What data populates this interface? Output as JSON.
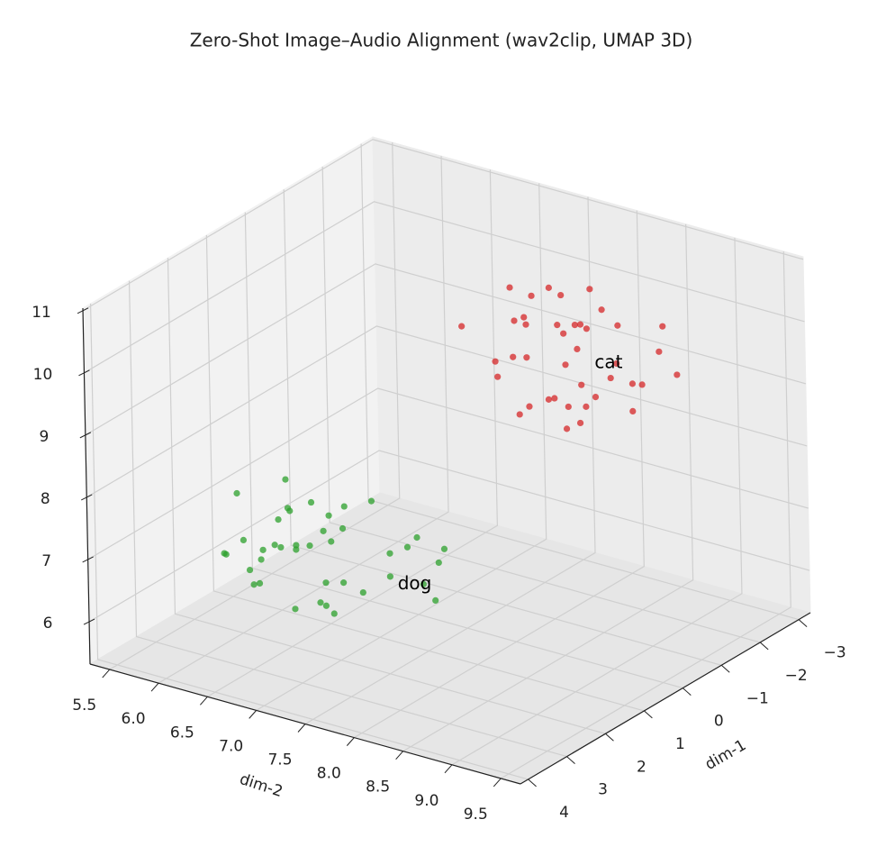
{
  "chart_data": {
    "type": "scatter3d",
    "title": "Zero-Shot Image–Audio Alignment (wav2clip, UMAP 3D)",
    "xlabel": "dim-1",
    "ylabel": "dim-2",
    "xlim": [
      -3.3,
      4.2
    ],
    "ylim": [
      5.3,
      9.7
    ],
    "zlim": [
      5.32,
      11.04
    ],
    "xticks": [
      {
        "value": -3,
        "label": "−3"
      },
      {
        "value": -2,
        "label": "−2"
      },
      {
        "value": -1,
        "label": "−1"
      },
      0,
      1,
      2,
      3,
      4
    ],
    "yticks": [
      5.5,
      {
        "value": 6,
        "label": "6.0"
      },
      6.5,
      {
        "value": 7,
        "label": "7.0"
      },
      7.5,
      {
        "value": 8,
        "label": "8.0"
      },
      8.5,
      {
        "value": 9,
        "label": "9.0"
      },
      9.5
    ],
    "zticks": [
      6,
      7,
      8,
      9,
      10,
      11
    ],
    "grid": true,
    "series": [
      {
        "color": "#d62728",
        "x": [
          -2.6,
          -0.4,
          -1.9,
          -1.1,
          -2.3,
          -0.7,
          -1.6,
          -2.8,
          -0.2,
          -1.3,
          -2.0,
          -0.9,
          -1.7,
          -2.5,
          -0.5,
          -1.2,
          -2.2,
          -0.8,
          -1.4,
          -2.7,
          -0.3,
          -1.8,
          -1.0,
          -2.4,
          -0.6,
          -1.5,
          -2.1,
          -0.1,
          -1.9,
          -2.9,
          -1.1,
          -0.7,
          -2.3,
          -1.6,
          -0.4,
          -2.0,
          -1.3,
          -2.6,
          -0.9,
          -1.7
        ],
        "y": [
          7.5,
          8.4,
          8.1,
          7.7,
          8.6,
          7.9,
          8.3,
          7.4,
          8.0,
          8.5,
          7.6,
          8.2,
          7.8,
          8.7,
          7.3,
          8.1,
          7.9,
          8.4,
          7.6,
          8.0,
          8.6,
          7.5,
          8.3,
          7.7,
          8.2,
          7.4,
          8.5,
          7.8,
          8.0,
          8.4,
          7.6,
          8.1,
          7.9,
          8.6,
          7.7,
          8.3,
          7.5,
          8.2,
          7.8,
          8.0
        ],
        "z": [
          9.1,
          9.8,
          8.6,
          10.0,
          9.4,
          8.8,
          10.2,
          9.6,
          8.9,
          9.3,
          10.1,
          8.5,
          9.7,
          9.0,
          9.9,
          8.7,
          9.5,
          10.3,
          9.2,
          8.8,
          9.6,
          10.0,
          8.6,
          9.4,
          9.1,
          10.2,
          8.9,
          9.7,
          8.4,
          9.5,
          9.9,
          9.0,
          10.1,
          8.7,
          9.3,
          9.8,
          9.2,
          8.6,
          10.0,
          9.4
        ]
      },
      {
        "color": "#2ca02c",
        "x": [
          1.2,
          3.4,
          2.0,
          2.9,
          1.6,
          3.1,
          2.4,
          1.0,
          3.5,
          1.8,
          2.7,
          1.4,
          3.2,
          2.2,
          1.1,
          3.0,
          2.5,
          1.7,
          3.3,
          2.1,
          1.3,
          2.8,
          1.9,
          3.6,
          2.3,
          1.5,
          3.1,
          2.6,
          1.2,
          2.0,
          3.4,
          1.8,
          2.9,
          1.6,
          2.4,
          3.2,
          1.0,
          2.7,
          2.2,
          1.4
        ],
        "y": [
          6.4,
          7.5,
          6.9,
          6.2,
          7.7,
          7.0,
          6.5,
          7.3,
          6.8,
          7.9,
          6.3,
          7.1,
          6.6,
          7.6,
          6.1,
          7.2,
          6.9,
          7.4,
          6.7,
          6.0,
          7.8,
          6.4,
          7.0,
          7.5,
          6.6,
          6.2,
          7.3,
          6.8,
          7.7,
          6.5,
          7.1,
          6.3,
          7.6,
          6.9,
          7.2,
          6.7,
          7.4,
          6.1,
          7.0,
          6.6
        ],
        "z": [
          7.3,
          6.8,
          7.6,
          7.0,
          6.7,
          7.5,
          7.1,
          6.9,
          7.4,
          6.6,
          7.2,
          7.7,
          6.8,
          7.0,
          7.5,
          6.7,
          7.3,
          7.1,
          6.9,
          7.6,
          7.2,
          6.8,
          7.4,
          7.0,
          7.7,
          6.6,
          7.1,
          7.3,
          6.9,
          7.5,
          6.7,
          7.2,
          7.0,
          7.6,
          6.8,
          7.4,
          7.1,
          6.9,
          7.3,
          7.0
        ]
      }
    ],
    "annotations": [
      {
        "text": "cat",
        "x": -2.0,
        "y": 8.2,
        "z": 9.15
      },
      {
        "text": "dog",
        "x": 2.3,
        "y": 7.89,
        "z": 7.04
      }
    ]
  }
}
